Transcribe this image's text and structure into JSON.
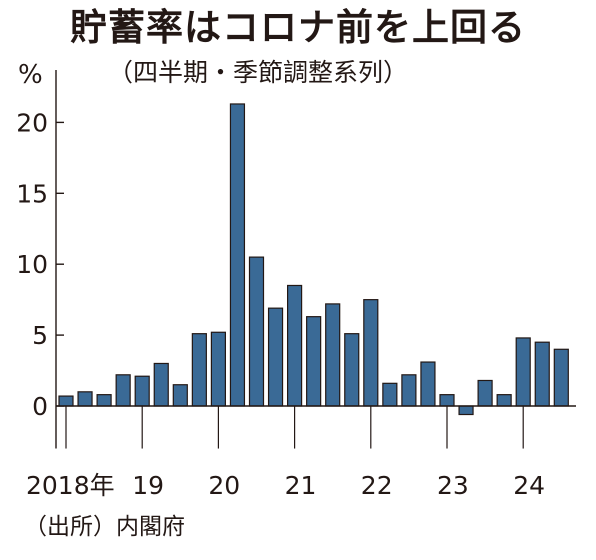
{
  "chart_data": {
    "type": "bar",
    "title": "貯蓄率はコロナ前を上回る",
    "subtitle": "（四半期・季節調整系列）",
    "unit": "%",
    "source": "（出所）内閣府",
    "ylim": [
      -3,
      23
    ],
    "yticks": [
      0,
      5,
      10,
      15,
      20
    ],
    "xtick_labels": [
      "2018年",
      "19",
      "20",
      "21",
      "22",
      "23",
      "24"
    ],
    "categories": [
      "2018Q1",
      "2018Q2",
      "2018Q3",
      "2018Q4",
      "2019Q1",
      "2019Q2",
      "2019Q3",
      "2019Q4",
      "2020Q1",
      "2020Q2",
      "2020Q3",
      "2020Q4",
      "2021Q1",
      "2021Q2",
      "2021Q3",
      "2021Q4",
      "2022Q1",
      "2022Q2",
      "2022Q3",
      "2022Q4",
      "2023Q1",
      "2023Q2",
      "2023Q3",
      "2023Q4",
      "2024Q1",
      "2024Q2",
      "2024Q3"
    ],
    "values": [
      0.7,
      1.0,
      0.8,
      2.2,
      2.1,
      3.0,
      1.5,
      5.1,
      5.2,
      21.3,
      10.5,
      6.9,
      8.5,
      6.3,
      7.2,
      5.1,
      7.5,
      1.6,
      2.2,
      3.1,
      0.8,
      -0.6,
      1.8,
      0.8,
      4.8,
      4.5,
      4.0
    ],
    "bar_color": "#3a6a96",
    "grid": false
  }
}
